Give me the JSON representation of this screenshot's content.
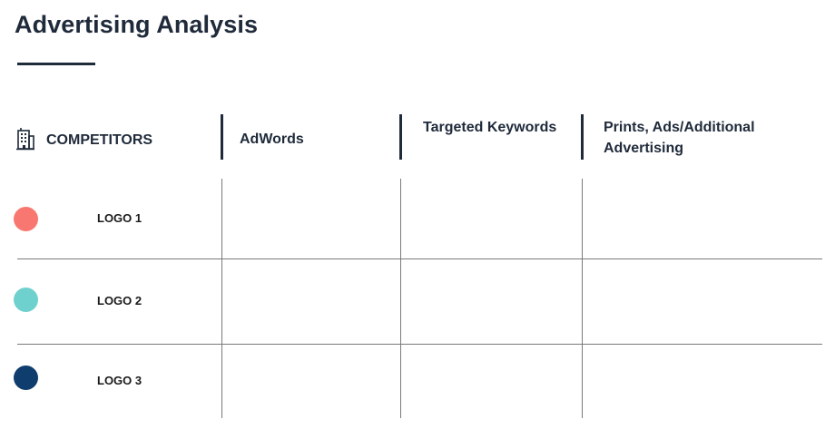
{
  "page": {
    "title": "Advertising Analysis"
  },
  "header": {
    "competitors_label": "COMPETITORS",
    "competitors_icon": "building-icon",
    "columns": [
      "AdWords",
      "Targeted Keywords",
      "Prints, Ads/Additional Advertising"
    ]
  },
  "rows": [
    {
      "logo_label": "LOGO 1",
      "color": "#f87871",
      "cells": [
        "",
        "",
        ""
      ]
    },
    {
      "logo_label": "LOGO 2",
      "color": "#6fd1ce",
      "cells": [
        "",
        "",
        ""
      ]
    },
    {
      "logo_label": "LOGO 3",
      "color": "#0f3d6e",
      "cells": [
        "",
        "",
        ""
      ]
    }
  ],
  "colors": {
    "text_dark": "#1f2a3a",
    "grid_line": "#7a7a7a"
  }
}
